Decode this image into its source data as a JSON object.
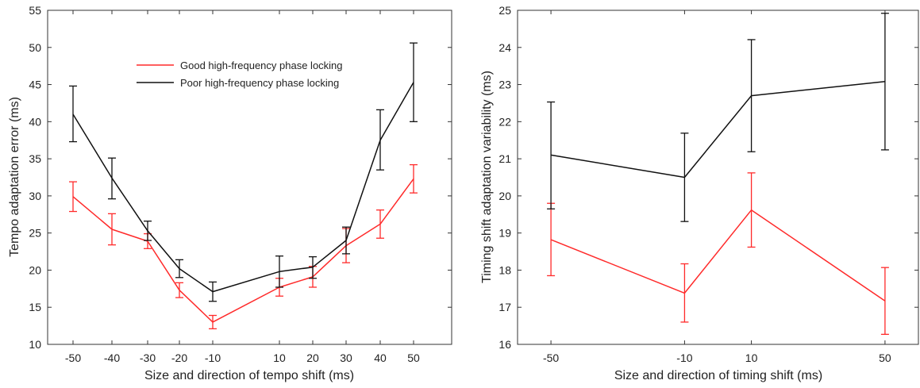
{
  "chart_data": [
    {
      "type": "line",
      "title": "",
      "xlabel": "Size and direction of tempo shift (ms)",
      "ylabel": "Tempo adaptation error (ms)",
      "x": [
        -50,
        -40,
        -30,
        -20,
        -10,
        10,
        20,
        30,
        40,
        50
      ],
      "x_ticks": [
        -50,
        -40,
        -30,
        -20,
        -10,
        10,
        20,
        30,
        40,
        50
      ],
      "y_ticks": [
        10,
        15,
        20,
        25,
        30,
        35,
        40,
        45,
        50,
        55
      ],
      "ylim": [
        10,
        55
      ],
      "grid": false,
      "legend_position": "top-center",
      "series": [
        {
          "name": "Good high-frequency phase locking",
          "color": "#ff2a2a",
          "values": [
            29.9,
            25.5,
            23.9,
            17.3,
            13.0,
            17.7,
            19.1,
            23.3,
            26.2,
            32.3
          ],
          "err_low": [
            27.9,
            23.4,
            22.9,
            16.3,
            12.1,
            16.5,
            17.7,
            21.0,
            24.3,
            30.4
          ],
          "err_high": [
            31.9,
            27.6,
            24.9,
            18.3,
            13.9,
            18.9,
            20.5,
            25.6,
            28.1,
            34.2
          ]
        },
        {
          "name": "Poor high-frequency phase locking",
          "color": "#111111",
          "values": [
            41.0,
            32.4,
            25.3,
            20.2,
            17.1,
            19.8,
            20.4,
            24.0,
            37.5,
            45.3
          ],
          "err_low": [
            37.3,
            29.6,
            24.0,
            19.0,
            15.8,
            17.7,
            18.9,
            22.2,
            33.5,
            40.0
          ],
          "err_high": [
            44.8,
            35.1,
            26.6,
            21.4,
            18.4,
            21.9,
            21.8,
            25.8,
            41.6,
            50.6
          ]
        }
      ]
    },
    {
      "type": "line",
      "title": "",
      "xlabel": "Size and direction of timing shift (ms)",
      "ylabel": "Timing shift adaptation variability (ms)",
      "x": [
        -50,
        -10,
        10,
        50
      ],
      "x_ticks": [
        -50,
        -10,
        10,
        50
      ],
      "y_ticks": [
        16,
        17,
        18,
        19,
        20,
        21,
        22,
        23,
        24,
        25
      ],
      "xlim": [
        -60,
        60
      ],
      "ylim": [
        16,
        25
      ],
      "grid": false,
      "series": [
        {
          "color": "#ff2a2a",
          "values": [
            18.82,
            17.38,
            19.62,
            17.17
          ],
          "err_low": [
            17.85,
            16.6,
            18.62,
            16.27
          ],
          "err_high": [
            19.8,
            18.17,
            20.62,
            18.07
          ]
        },
        {
          "color": "#111111",
          "values": [
            21.1,
            20.5,
            22.7,
            23.08
          ],
          "err_low": [
            19.65,
            19.31,
            21.19,
            21.24
          ],
          "err_high": [
            22.53,
            21.69,
            24.21,
            24.92
          ]
        }
      ]
    }
  ]
}
